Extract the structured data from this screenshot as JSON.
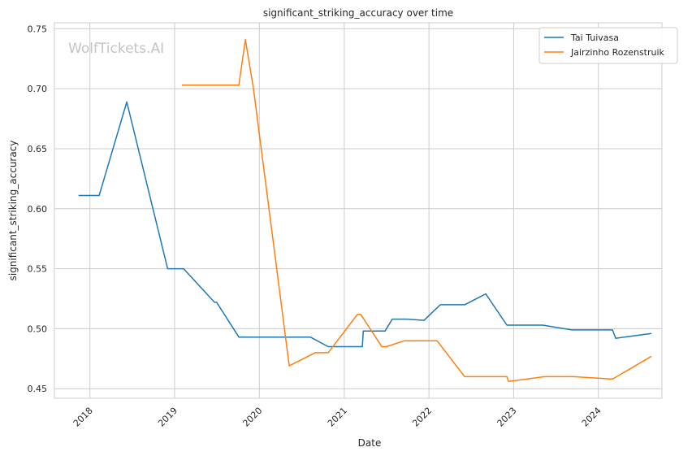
{
  "chart_data": {
    "type": "line",
    "title": "significant_striking_accuracy over time",
    "xlabel": "Date",
    "ylabel": "significant_striking_accuracy",
    "watermark": "WolfTickets.AI",
    "xlim": [
      "2017-08-01",
      "2024-10-01"
    ],
    "ylim": [
      0.442,
      0.755
    ],
    "x_ticks": [
      "2018",
      "2019",
      "2020",
      "2021",
      "2022",
      "2023",
      "2024"
    ],
    "y_ticks": [
      "0.45",
      "0.50",
      "0.55",
      "0.60",
      "0.65",
      "0.70",
      "0.75"
    ],
    "grid": true,
    "legend_position": "upper right",
    "series": [
      {
        "name": "Tai Tuivasa",
        "color": "#1f77b4",
        "x": [
          "2017-11-13",
          "2018-02-10",
          "2018-06-09",
          "2018-12-02",
          "2019-02-09",
          "2019-06-22",
          "2019-07-01",
          "2019-10-05",
          "2020-08-08",
          "2020-10-24",
          "2021-03-20",
          "2021-03-24",
          "2021-06-26",
          "2021-07-27",
          "2021-09-25",
          "2021-12-11",
          "2022-02-19",
          "2022-06-04",
          "2022-09-03",
          "2022-12-03",
          "2023-05-06",
          "2023-09-09",
          "2024-03-02",
          "2024-03-16",
          "2024-08-17"
        ],
        "values": [
          0.611,
          0.611,
          0.689,
          0.55,
          0.55,
          0.522,
          0.522,
          0.493,
          0.493,
          0.485,
          0.485,
          0.498,
          0.498,
          0.508,
          0.508,
          0.507,
          0.52,
          0.52,
          0.529,
          0.503,
          0.503,
          0.499,
          0.499,
          0.492,
          0.496
        ]
      },
      {
        "name": "Jairzinho Rozenstruik",
        "color": "#ff7f0e",
        "x": [
          "2019-02-01",
          "2019-10-05",
          "2019-11-02",
          "2019-12-07",
          "2020-05-09",
          "2020-08-29",
          "2020-10-24",
          "2021-02-27",
          "2021-03-13",
          "2021-06-12",
          "2021-07-01",
          "2021-09-18",
          "2022-02-05",
          "2022-06-04",
          "2022-12-03",
          "2022-12-10",
          "2023-05-13",
          "2023-09-16",
          "2024-03-02",
          "2024-08-17"
        ],
        "values": [
          0.703,
          0.703,
          0.741,
          0.7,
          0.469,
          0.48,
          0.48,
          0.512,
          0.512,
          0.485,
          0.485,
          0.49,
          0.49,
          0.46,
          0.46,
          0.456,
          0.46,
          0.46,
          0.458,
          0.477
        ]
      }
    ]
  }
}
